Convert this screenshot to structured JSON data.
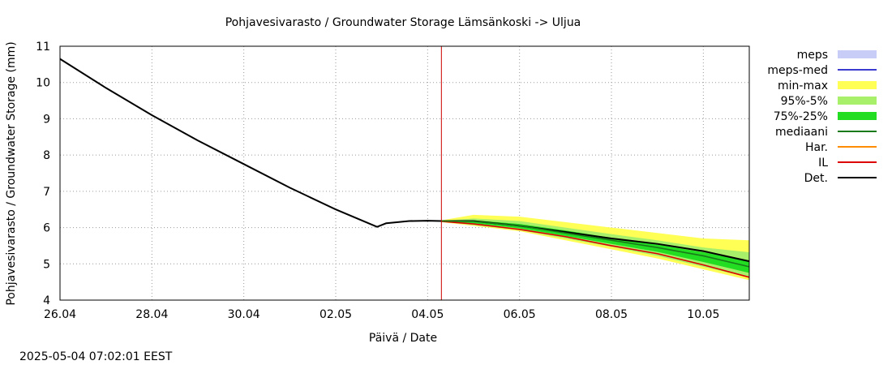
{
  "chart_data": {
    "type": "line",
    "title": "Pohjavesivarasto / Groundwater Storage    Lämsänkoski -> Uljua",
    "xlabel": "Päivä / Date",
    "ylabel": "Pohjavesivarasto / Groundwater Storage (mm)",
    "xlim": [
      0,
      15
    ],
    "ylim": [
      4,
      11
    ],
    "x_ticks": [
      {
        "x": 0,
        "label": "26.04"
      },
      {
        "x": 2,
        "label": "28.04"
      },
      {
        "x": 4,
        "label": "30.04"
      },
      {
        "x": 6,
        "label": "02.05"
      },
      {
        "x": 8,
        "label": "04.05"
      },
      {
        "x": 10,
        "label": "06.05"
      },
      {
        "x": 12,
        "label": "08.05"
      },
      {
        "x": 14,
        "label": "10.05"
      }
    ],
    "y_ticks": [
      4,
      5,
      6,
      7,
      8,
      9,
      10,
      11
    ],
    "grid": true,
    "legend_position": "right",
    "forecast_start_x": 8.3,
    "legend": [
      {
        "label": "meps",
        "kind": "band",
        "color": "#c8cdf7"
      },
      {
        "label": "meps-med",
        "kind": "line",
        "color": "#3b3bd0"
      },
      {
        "label": "min-max",
        "kind": "band",
        "color": "#ffff55"
      },
      {
        "label": "95%-5%",
        "kind": "band",
        "color": "#a8f06a"
      },
      {
        "label": "75%-25%",
        "kind": "band",
        "color": "#22dd22"
      },
      {
        "label": "mediaani",
        "kind": "line",
        "color": "#1a7a1a"
      },
      {
        "label": "Har.",
        "kind": "line",
        "color": "#ff8c00"
      },
      {
        "label": "IL",
        "kind": "line",
        "color": "#dd0000"
      },
      {
        "label": "Det.",
        "kind": "line",
        "color": "#000000"
      }
    ],
    "series": [
      {
        "name": "Det.",
        "color": "#000000",
        "x": [
          0,
          1,
          2,
          3,
          4,
          5,
          6,
          6.9,
          7.1,
          7.6,
          8.0,
          8.3,
          9,
          10,
          11,
          12,
          13,
          14,
          15
        ],
        "y": [
          10.65,
          9.85,
          9.1,
          8.4,
          7.75,
          7.1,
          6.5,
          6.02,
          6.12,
          6.18,
          6.19,
          6.18,
          6.18,
          6.05,
          5.88,
          5.7,
          5.55,
          5.35,
          5.07
        ]
      },
      {
        "name": "IL",
        "color": "#dd0000",
        "x": [
          8.3,
          9,
          10,
          11,
          12,
          13,
          14,
          15
        ],
        "y": [
          6.17,
          6.1,
          5.95,
          5.75,
          5.5,
          5.28,
          4.97,
          4.63
        ]
      },
      {
        "name": "mediaani",
        "color": "#1a7a1a",
        "x": [
          8.3,
          9,
          10,
          11,
          12,
          13,
          14,
          15
        ],
        "y": [
          6.18,
          6.17,
          6.05,
          5.85,
          5.65,
          5.45,
          5.22,
          4.92
        ]
      }
    ],
    "bands": [
      {
        "name": "min-max",
        "color": "#ffff55",
        "x": [
          8.3,
          9,
          10,
          11,
          12,
          13,
          14,
          15
        ],
        "upper": [
          6.2,
          6.35,
          6.3,
          6.15,
          6.0,
          5.85,
          5.7,
          5.65
        ],
        "lower": [
          6.15,
          6.05,
          5.9,
          5.65,
          5.4,
          5.15,
          4.85,
          4.55
        ]
      },
      {
        "name": "95%-5%",
        "color": "#a8f06a",
        "x": [
          8.3,
          9,
          10,
          11,
          12,
          13,
          14,
          15
        ],
        "upper": [
          6.19,
          6.25,
          6.18,
          6.0,
          5.82,
          5.65,
          5.45,
          5.32
        ],
        "lower": [
          6.16,
          6.07,
          5.93,
          5.7,
          5.47,
          5.22,
          4.92,
          4.62
        ]
      },
      {
        "name": "75%-25%",
        "color": "#22dd22",
        "x": [
          8.3,
          9,
          10,
          11,
          12,
          13,
          14,
          15
        ],
        "upper": [
          6.185,
          6.2,
          6.1,
          5.92,
          5.72,
          5.53,
          5.32,
          5.08
        ],
        "lower": [
          6.175,
          6.12,
          5.98,
          5.77,
          5.55,
          5.33,
          5.05,
          4.75
        ]
      }
    ]
  },
  "footer": {
    "timestamp": "2025-05-04 07:02:01 EEST"
  }
}
